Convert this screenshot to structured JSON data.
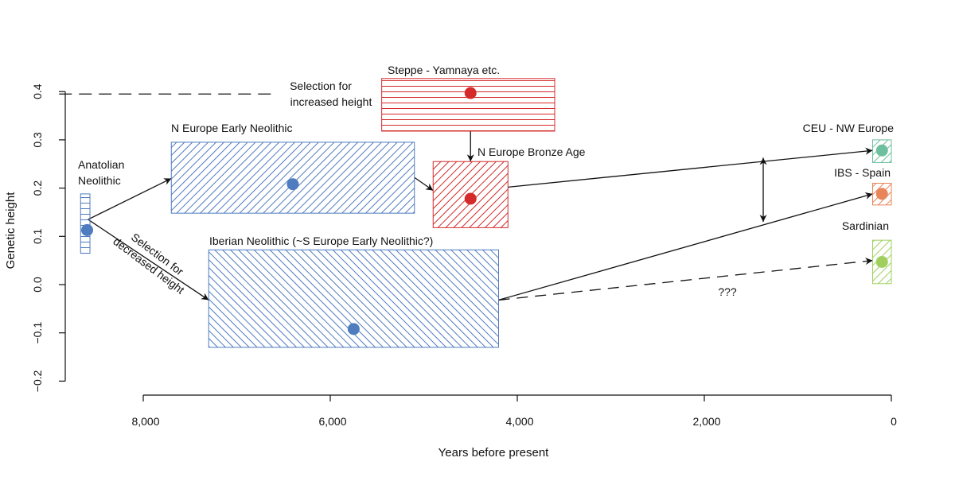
{
  "chart_data": {
    "type": "scatter",
    "title": "",
    "xlabel": "Years before present",
    "ylabel": "Genetic height",
    "xlim": [
      8900,
      0
    ],
    "ylim": [
      -0.2,
      0.4
    ],
    "x_reversed": true,
    "x_ticks": [
      8000,
      6000,
      4000,
      2000,
      0
    ],
    "x_tick_labels": [
      "8,000",
      "6,000",
      "4,000",
      "2,000",
      "0"
    ],
    "y_ticks": [
      -0.2,
      -0.1,
      0.0,
      0.1,
      0.2,
      0.3,
      0.4
    ],
    "y_tick_labels": [
      "−0.2",
      "−0.1",
      "0.0",
      "0.1",
      "0.2",
      "0.3",
      "0.4"
    ],
    "grid": false,
    "legend": "none",
    "colors": {
      "blue": "#4f7bbf",
      "red": "#d42a2a",
      "teal": "#6dbf9d",
      "orange": "#e8855a",
      "green": "#9fd05f",
      "axis": "#111111"
    },
    "groups": [
      {
        "id": "anatolian",
        "label_lines": [
          "Anatolian",
          "Neolithic"
        ],
        "x": 8600,
        "y": 0.113,
        "x_range": [
          8670,
          8570
        ],
        "y_range": [
          0.065,
          0.188
        ],
        "color": "blue",
        "hatch": "horizontal"
      },
      {
        "id": "n-europe-en",
        "label_lines": [
          "N Europe Early Neolithic"
        ],
        "x": 6400,
        "y": 0.208,
        "x_range": [
          7700,
          5100
        ],
        "y_range": [
          0.148,
          0.295
        ],
        "color": "blue",
        "hatch": "diag-up"
      },
      {
        "id": "steppe",
        "label_lines": [
          "Steppe - Yamnaya etc."
        ],
        "x": 4500,
        "y": 0.397,
        "x_range": [
          5450,
          3600
        ],
        "y_range": [
          0.318,
          0.427
        ],
        "color": "red",
        "hatch": "horizontal"
      },
      {
        "id": "n-europe-ba",
        "label_lines": [
          "N Europe Bronze Age"
        ],
        "x": 4500,
        "y": 0.178,
        "x_range": [
          4900,
          4100
        ],
        "y_range": [
          0.118,
          0.255
        ],
        "color": "red",
        "hatch": "diag-up"
      },
      {
        "id": "iberian",
        "label_lines": [
          "Iberian Neolithic (~S Europe Early Neolithic?)"
        ],
        "x": 5750,
        "y": -0.092,
        "x_range": [
          7300,
          4200
        ],
        "y_range": [
          -0.13,
          0.072
        ],
        "color": "blue",
        "hatch": "diag-down"
      },
      {
        "id": "ceu",
        "label_lines": [
          "CEU - NW Europe"
        ],
        "x": 100,
        "y": 0.278,
        "x_range": [
          200,
          0
        ],
        "y_range": [
          0.253,
          0.3
        ],
        "color": "teal",
        "hatch": "diag-up"
      },
      {
        "id": "ibs",
        "label_lines": [
          "IBS - Spain"
        ],
        "x": 100,
        "y": 0.188,
        "x_range": [
          200,
          0
        ],
        "y_range": [
          0.165,
          0.21
        ],
        "color": "orange",
        "hatch": "diag-up"
      },
      {
        "id": "sardinian",
        "label_lines": [
          "Sardinian"
        ],
        "x": 100,
        "y": 0.047,
        "x_range": [
          200,
          0
        ],
        "y_range": [
          0.002,
          0.092
        ],
        "color": "green",
        "hatch": "diag-up"
      }
    ],
    "arrows": [
      {
        "from": [
          8590,
          0.135
        ],
        "to": [
          7700,
          0.22
        ],
        "style": "solid"
      },
      {
        "from": [
          8590,
          0.135
        ],
        "to": [
          7300,
          -0.032
        ],
        "style": "solid"
      },
      {
        "from": [
          5100,
          0.222
        ],
        "to": [
          4900,
          0.195
        ],
        "style": "solid"
      },
      {
        "from": [
          4500,
          0.318
        ],
        "to": [
          4500,
          0.255
        ],
        "style": "solid"
      },
      {
        "from": [
          4100,
          0.202
        ],
        "to": [
          200,
          0.278
        ],
        "style": "solid"
      },
      {
        "from": [
          4200,
          -0.032
        ],
        "to": [
          200,
          0.188
        ],
        "style": "solid"
      },
      {
        "from": [
          4200,
          -0.032
        ],
        "to": [
          200,
          0.05
        ],
        "style": "dashed"
      },
      {
        "from": [
          1370,
          0.13
        ],
        "to": [
          1370,
          0.263
        ],
        "style": "double"
      }
    ],
    "dashed_line": {
      "from": [
        8900,
        0.395
      ],
      "to": [
        5450,
        0.395
      ]
    },
    "annotations": [
      {
        "id": "selection-increased",
        "lines": [
          "Selection for",
          "increased height"
        ]
      },
      {
        "id": "selection-decreased",
        "lines": [
          "Selection for",
          "decreased height"
        ]
      },
      {
        "id": "question",
        "lines": [
          "???"
        ]
      }
    ]
  }
}
